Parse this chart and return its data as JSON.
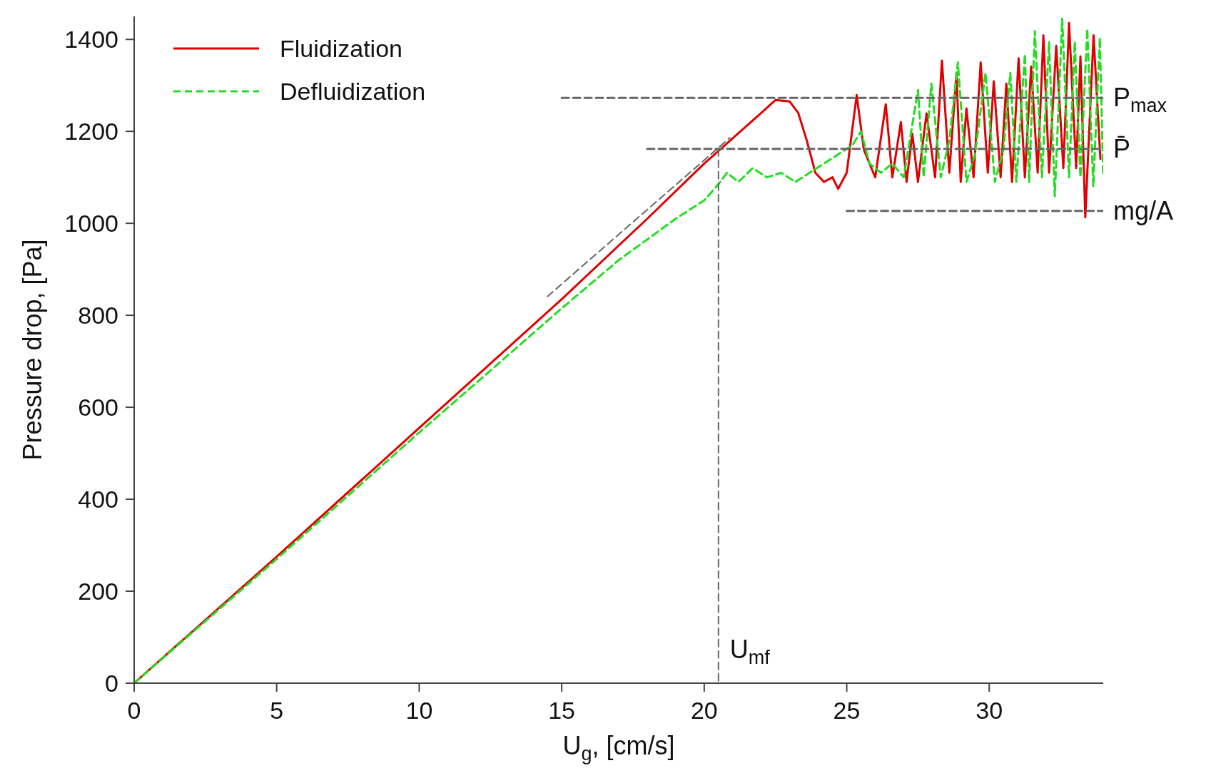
{
  "chart_data": {
    "type": "line",
    "xlabel": "U$_{g}$, [cm/s]",
    "ylabel": "Pressure drop, [Pa]",
    "xlim": [
      0,
      34
    ],
    "xticks": [
      0,
      5,
      10,
      15,
      20,
      25,
      30
    ],
    "ylim": [
      0,
      1450
    ],
    "yticks": [
      0,
      200,
      400,
      600,
      800,
      1000,
      1200,
      1400
    ],
    "grid": false,
    "legend": "top left",
    "marker": "none",
    "series": [
      {
        "name": "Fluidization",
        "color": "#e00000",
        "line_style": "solid",
        "x": [
          0,
          5,
          10,
          15,
          18,
          20,
          21,
          22,
          22.5,
          23,
          23.3,
          23.6,
          23.9,
          24.2,
          24.5,
          24.7,
          25,
          25.35,
          25.6,
          26,
          26.37,
          26.6,
          26.9,
          27.1,
          27.3,
          27.5,
          27.8,
          28.1,
          28.34,
          28.6,
          28.85,
          29,
          29.2,
          29.45,
          29.7,
          29.95,
          30.16,
          30.4,
          30.6,
          30.8,
          31.03,
          31.25,
          31.47,
          31.7,
          31.9,
          32.1,
          32.35,
          32.6,
          32.8,
          33.05,
          33.2,
          33.37,
          33.66,
          33.9
        ],
        "values": [
          0,
          275,
          555,
          835,
          1010,
          1130,
          1185,
          1240,
          1268,
          1265,
          1240,
          1180,
          1110,
          1090,
          1100,
          1075,
          1110,
          1279,
          1160,
          1100,
          1259,
          1100,
          1220,
          1090,
          1195,
          1090,
          1239,
          1100,
          1354,
          1110,
          1327,
          1090,
          1250,
          1100,
          1350,
          1110,
          1309,
          1100,
          1304,
          1090,
          1359,
          1100,
          1341,
          1110,
          1409,
          1110,
          1386,
          1120,
          1436,
          1120,
          1363,
          1013,
          1409,
          1140
        ]
      },
      {
        "name": "Defluidization",
        "color": "#22dd22",
        "line_style": "dashed",
        "x": [
          0,
          5,
          10,
          15,
          17,
          18,
          19,
          19.5,
          20,
          20.5,
          20.8,
          21.2,
          21.7,
          22.2,
          22.7,
          23.2,
          23.7,
          24.2,
          24.7,
          25.2,
          25.5,
          25.8,
          26.2,
          26.6,
          27,
          27.5,
          27.7,
          27.97,
          28.3,
          28.6,
          28.9,
          29.2,
          29.5,
          29.87,
          30.2,
          30.5,
          30.74,
          30.95,
          31.25,
          31.4,
          31.6,
          31.85,
          32.1,
          32.3,
          32.56,
          32.8,
          33,
          33.2,
          33.44,
          33.65,
          33.88,
          34
        ],
        "values": [
          0,
          270,
          545,
          815,
          920,
          965,
          1010,
          1030,
          1050,
          1085,
          1110,
          1090,
          1120,
          1100,
          1110,
          1090,
          1110,
          1130,
          1150,
          1170,
          1200,
          1130,
          1110,
          1130,
          1100,
          1290,
          1100,
          1304,
          1100,
          1180,
          1350,
          1090,
          1150,
          1327,
          1090,
          1160,
          1327,
          1090,
          1368,
          1090,
          1418,
          1100,
          1395,
          1059,
          1445,
          1100,
          1395,
          1100,
          1423,
          1080,
          1404,
          1100
        ]
      },
      {
        "name": "P$_{max}$",
        "color": "#666666",
        "line_style": "dashed",
        "x": [
          15,
          34
        ],
        "values": [
          1273,
          1273
        ]
      },
      {
        "name": "P̄",
        "color": "#666666",
        "line_style": "dashed",
        "x": [
          18,
          34
        ],
        "values": [
          1162,
          1162
        ]
      },
      {
        "name": "mg/A",
        "color": "#666666",
        "line_style": "dashed",
        "x": [
          25,
          34
        ],
        "values": [
          1027,
          1027
        ]
      },
      {
        "color": "#666666",
        "line_style": "dashed",
        "x": [
          20.5,
          20.5
        ],
        "values": [
          1162,
          0
        ]
      },
      {
        "color": "#666666",
        "line_style": "dashed",
        "x": [
          14.5,
          20.9
        ],
        "values": [
          841,
          1186
        ]
      }
    ],
    "annotations": [
      {
        "text": "U$_{mf}$",
        "x": 20.5,
        "y": 0
      }
    ]
  }
}
